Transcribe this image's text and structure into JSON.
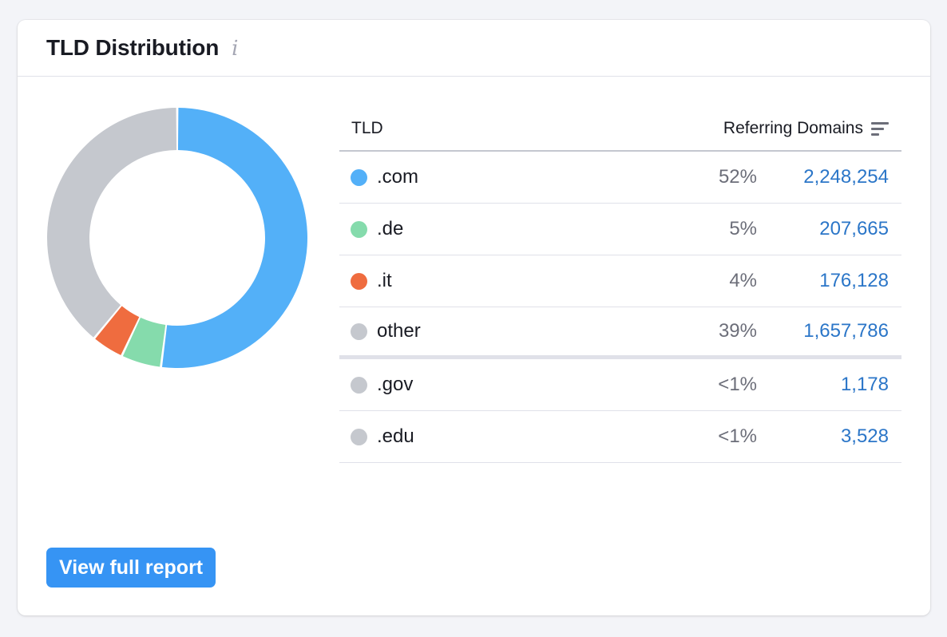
{
  "card": {
    "title": "TLD Distribution",
    "info_icon": "info-icon"
  },
  "table": {
    "col_tld": "TLD",
    "col_domains": "Referring Domains",
    "sort_icon": "sort-icon",
    "rows": [
      {
        "tld": ".com",
        "pct": "52%",
        "count": "2,248,254",
        "color": "#53b0f8"
      },
      {
        "tld": ".de",
        "pct": "5%",
        "count": "207,665",
        "color": "#85dbac"
      },
      {
        "tld": ".it",
        "pct": "4%",
        "count": "176,128",
        "color": "#ef6c3f"
      },
      {
        "tld": "other",
        "pct": "39%",
        "count": "1,657,786",
        "color": "#c5c8ce"
      },
      {
        "tld": ".gov",
        "pct": "<1%",
        "count": "1,178",
        "color": "#c5c8ce"
      },
      {
        "tld": ".edu",
        "pct": "<1%",
        "count": "3,528",
        "color": "#c5c8ce"
      }
    ]
  },
  "chart_data": {
    "type": "pie",
    "categories": [
      ".com",
      ".de",
      ".it",
      "other"
    ],
    "values": [
      52,
      5,
      4,
      39
    ],
    "colors": [
      "#53b0f8",
      "#85dbac",
      "#ef6c3f",
      "#c5c8ce"
    ]
  },
  "button": {
    "label": "View full report"
  }
}
